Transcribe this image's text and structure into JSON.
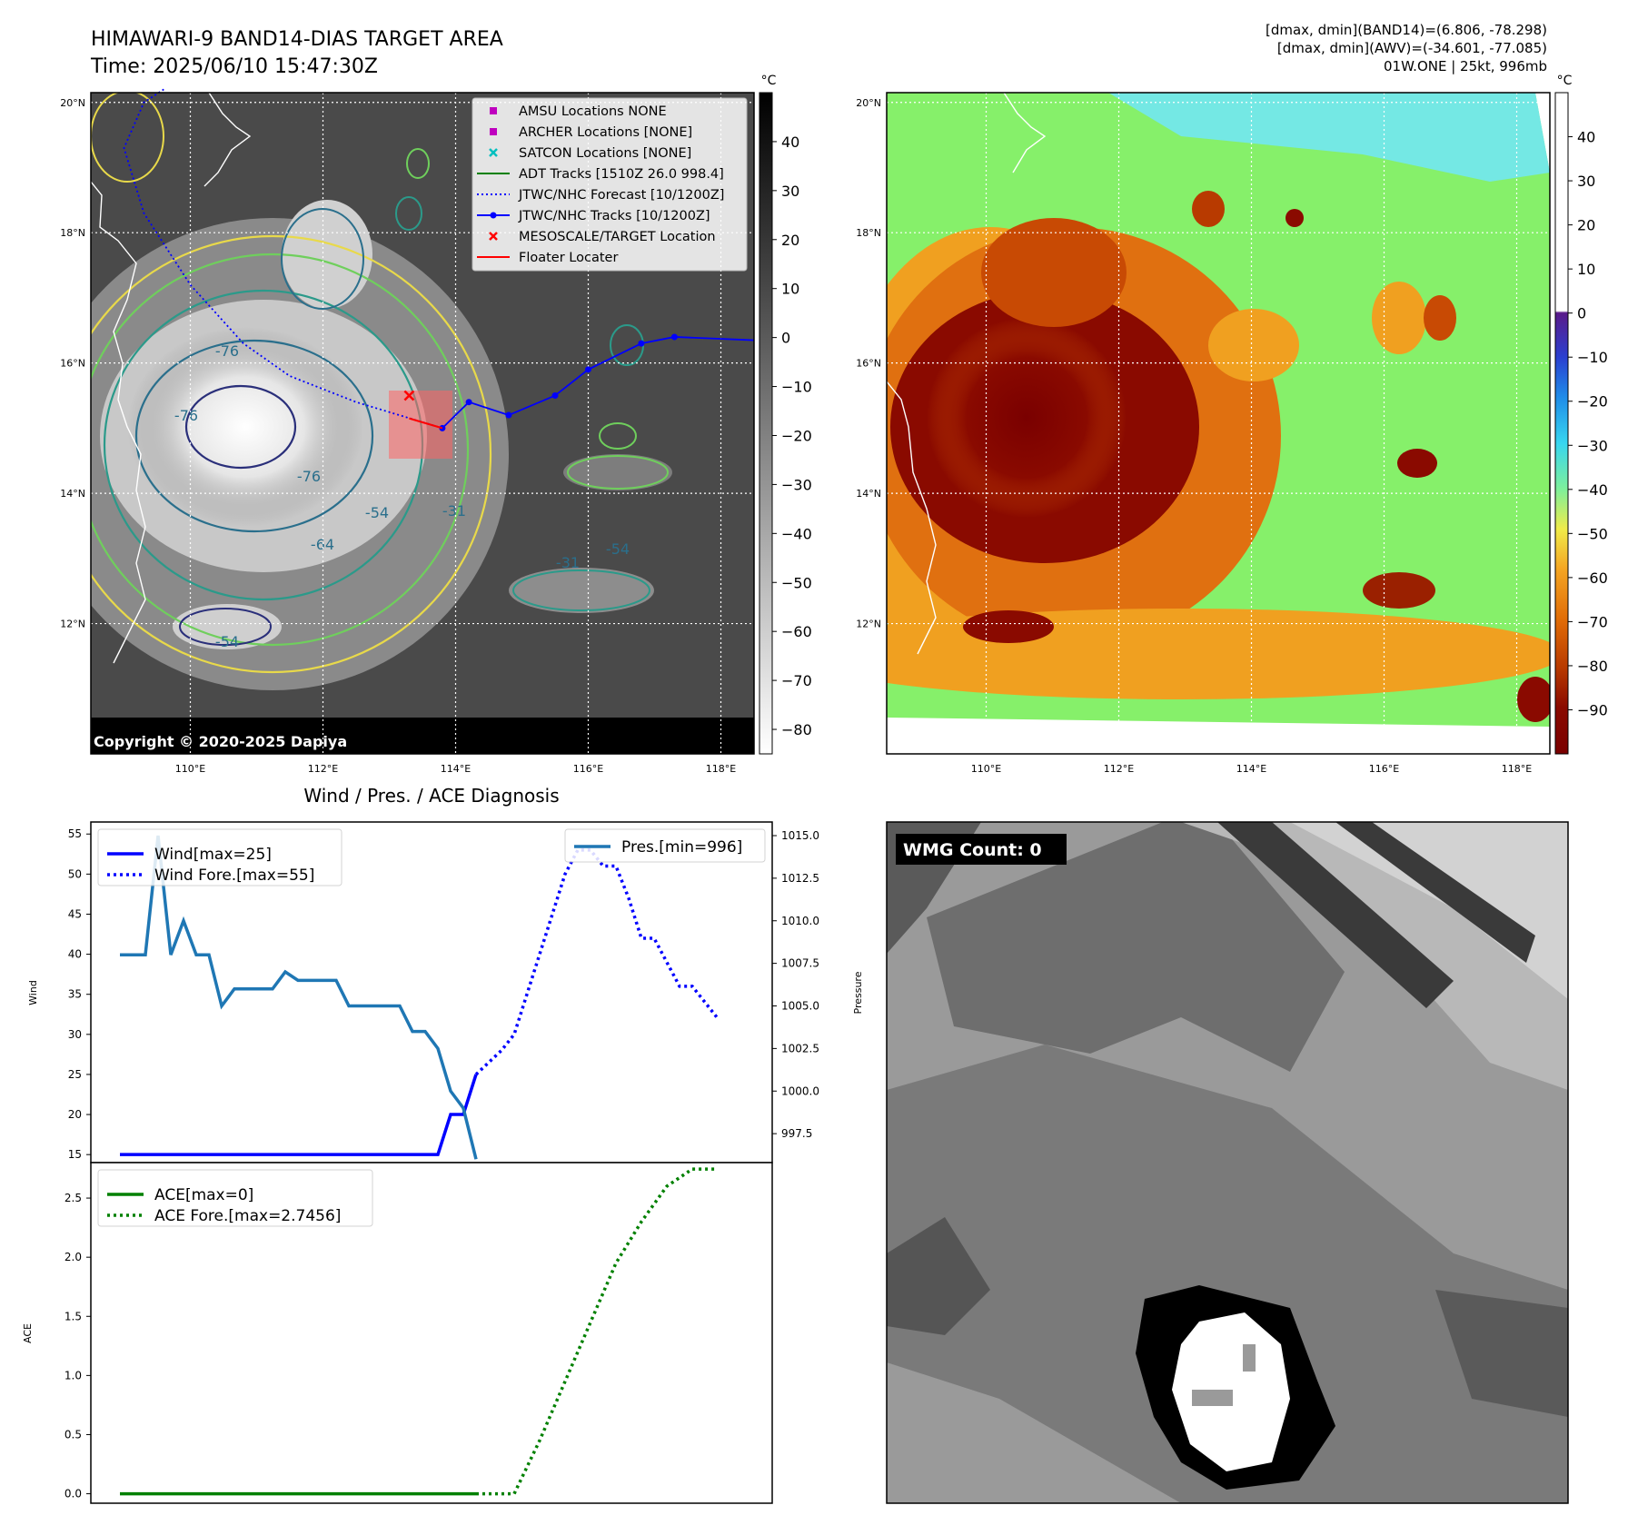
{
  "header": {
    "title_line1": "HIMAWARI-9 BAND14-DIAS TARGET AREA",
    "title_line2": "Time: 2025/06/10 15:47:30Z",
    "info_line1": "[dmax, dmin](BAND14)=(6.806, -78.298)",
    "info_line2": "[dmax, dmin](AWV)=(-34.601, -77.085)",
    "info_line3": "01W.ONE | 25kt, 996mb"
  },
  "copyright": "Copyright © 2020-2025 Dapiya",
  "colors": {
    "wind": "#0000ff",
    "pressure": "#1f77b4",
    "ace": "#008000",
    "track": "#0000ff",
    "target": "#ff0000",
    "amsu": "#bf00bf",
    "satcon": "#00bfbf"
  },
  "map_axes": {
    "lon_ticks": [
      "110°E",
      "112°E",
      "114°E",
      "116°E",
      "118°E"
    ],
    "lat_ticks": [
      "20°N",
      "18°N",
      "16°N",
      "14°N",
      "12°N"
    ],
    "lon_values": [
      110,
      112,
      114,
      116,
      118
    ],
    "lat_values": [
      20,
      18,
      16,
      14,
      12
    ],
    "lon_range": [
      108.5,
      118.5
    ],
    "lat_range": [
      10.0,
      20.15
    ]
  },
  "map_legend": {
    "items": [
      {
        "label": "AMSU Locations NONE",
        "marker": "square",
        "color": "#bf00bf"
      },
      {
        "label": "ARCHER Locations [NONE]",
        "marker": "square",
        "color": "#bf00bf"
      },
      {
        "label": "SATCON Locations [NONE]",
        "marker": "x",
        "color": "#00bfbf"
      },
      {
        "label": "ADT Tracks [1510Z 26.0 998.4]",
        "marker": "line",
        "color": "#008000"
      },
      {
        "label": "JTWC/NHC Forecast [10/1200Z]",
        "marker": "dotted",
        "color": "#0000ff"
      },
      {
        "label": "JTWC/NHC Tracks [10/1200Z]",
        "marker": "line-dot",
        "color": "#0000ff"
      },
      {
        "label": "MESOSCALE/TARGET Location",
        "marker": "x",
        "color": "#ff0000"
      },
      {
        "label": "Floater Locater",
        "marker": "line",
        "color": "#ff0000"
      }
    ]
  },
  "contour_labels": [
    "-76",
    "-76",
    "-76",
    "-64",
    "-54",
    "-54",
    "-54",
    "-31",
    "-31"
  ],
  "track": {
    "lon": [
      113.8,
      114.2,
      114.8,
      115.5,
      116.0,
      116.8,
      117.3,
      118.5
    ],
    "lat": [
      15.0,
      15.4,
      15.2,
      15.5,
      15.9,
      16.3,
      16.4,
      16.35
    ]
  },
  "forecast_track": {
    "lon": [
      113.8,
      112.5,
      111.5,
      110.8,
      110.0,
      109.3,
      109.0,
      109.3,
      109.6
    ],
    "lat": [
      15.0,
      15.4,
      15.8,
      16.3,
      17.2,
      18.3,
      19.3,
      20.0,
      20.2
    ]
  },
  "target_location": {
    "lon": 113.3,
    "lat": 15.5
  },
  "colorbar_band14": {
    "unit": "°C",
    "ticks": [
      "40",
      "30",
      "20",
      "10",
      "0",
      "−10",
      "−20",
      "−30",
      "−40",
      "−50",
      "−60",
      "−70",
      "−80"
    ],
    "values": [
      40,
      30,
      20,
      10,
      0,
      -10,
      -20,
      -30,
      -40,
      -50,
      -60,
      -70,
      -80
    ],
    "range": [
      -85,
      50
    ]
  },
  "colorbar_awv": {
    "unit": "°C",
    "ticks": [
      "40",
      "30",
      "20",
      "10",
      "0",
      "−10",
      "−20",
      "−30",
      "−40",
      "−50",
      "−60",
      "−70",
      "−80",
      "−90"
    ],
    "values": [
      40,
      30,
      20,
      10,
      0,
      -10,
      -20,
      -30,
      -40,
      -50,
      -60,
      -70,
      -80,
      -90
    ],
    "range": [
      -100,
      50
    ]
  },
  "chart_data": [
    {
      "type": "line",
      "title": "Wind / Pres. / ACE Diagnosis",
      "ylabel": "Wind",
      "ylabel_right": "Pressure",
      "ylim": [
        14,
        56.5
      ],
      "ylim_right": [
        995.8,
        1015.8
      ],
      "yticks": [
        15,
        20,
        25,
        30,
        35,
        40,
        45,
        50,
        55
      ],
      "yticks_right": [
        "1015.0",
        "1012.5",
        "1010.0",
        "1007.5",
        "1005.0",
        "1002.5",
        "1000.0",
        "997.5"
      ],
      "yticks_right_values": [
        1015,
        1012.5,
        1010,
        1007.5,
        1005,
        1002.5,
        1000,
        997.5
      ],
      "x_index_range": [
        0,
        49
      ],
      "series": [
        {
          "name": "Wind[max=25]",
          "axis": "left",
          "style": "solid",
          "x": [
            0,
            25,
            26,
            27,
            28
          ],
          "values": [
            15,
            15,
            20,
            20,
            25
          ]
        },
        {
          "name": "Wind Fore.[max=55]",
          "axis": "left",
          "style": "dotted",
          "x": [
            28,
            30,
            31,
            32,
            33,
            34,
            35,
            36,
            37,
            38,
            39,
            40,
            41,
            42,
            43,
            44,
            45,
            46,
            47
          ],
          "values": [
            25,
            28,
            30,
            35,
            40,
            45,
            50,
            53,
            53,
            51,
            51,
            47,
            42,
            42,
            39,
            36,
            36,
            34,
            32
          ]
        },
        {
          "name": "Pres.[min=996]",
          "axis": "right",
          "style": "solid",
          "x": [
            0,
            2,
            3,
            4,
            5,
            6,
            7,
            8,
            9,
            10,
            11,
            12,
            13,
            14,
            15,
            16,
            17,
            18,
            19,
            20,
            21,
            22,
            23,
            24,
            25,
            26,
            27,
            28
          ],
          "values": [
            1008,
            1008,
            1015,
            1008,
            1010,
            1008,
            1008,
            1005,
            1006,
            1006,
            1006,
            1006,
            1007,
            1006.5,
            1006.5,
            1006.5,
            1006.5,
            1005,
            1005,
            1005,
            1005,
            1005,
            1003.5,
            1003.5,
            1002.5,
            1000,
            999,
            996
          ]
        }
      ]
    },
    {
      "type": "line",
      "ylabel": "ACE",
      "ylim": [
        -0.08,
        2.8
      ],
      "yticks": [
        "0.0",
        "0.5",
        "1.0",
        "1.5",
        "2.0",
        "2.5"
      ],
      "yticks_values": [
        0,
        0.5,
        1.0,
        1.5,
        2.0,
        2.5
      ],
      "x_index_range": [
        0,
        49
      ],
      "series": [
        {
          "name": "ACE[max=0]",
          "style": "solid",
          "x": [
            0,
            28
          ],
          "values": [
            0,
            0
          ]
        },
        {
          "name": "ACE Fore.[max=2.7456]",
          "style": "dotted",
          "x": [
            28,
            31,
            33,
            35,
            37,
            39,
            41,
            43,
            45,
            47
          ],
          "values": [
            0,
            0,
            0.45,
            0.95,
            1.45,
            1.95,
            2.3,
            2.6,
            2.7456,
            2.7456
          ]
        }
      ]
    }
  ],
  "wmg": {
    "label": "WMG Count: 0"
  }
}
